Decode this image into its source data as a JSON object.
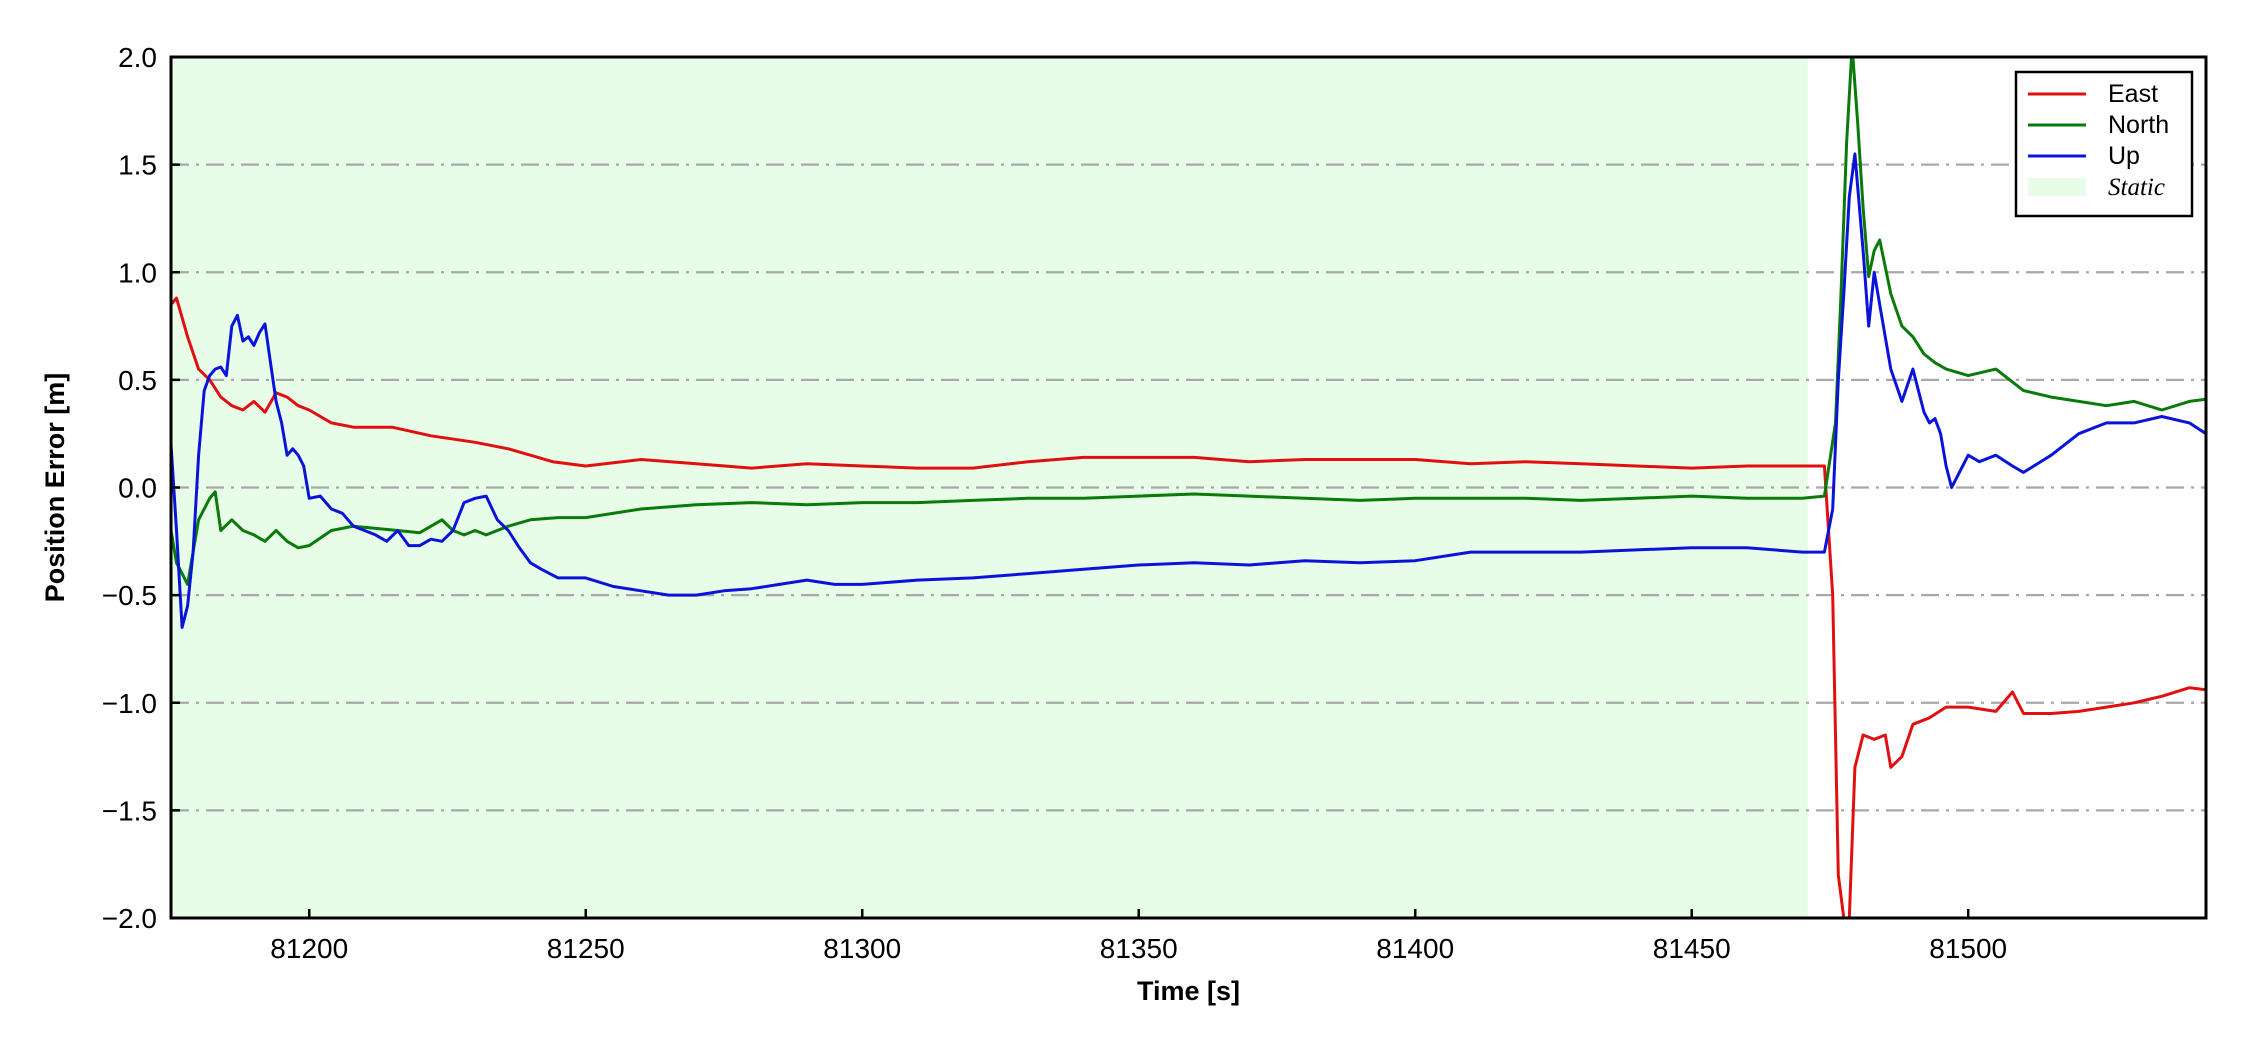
{
  "chart_data": {
    "type": "line",
    "title": "",
    "xlabel": "Time [s]",
    "ylabel": "Position Error [m]",
    "xlim": [
      81175,
      81543
    ],
    "ylim": [
      -2.0,
      2.0
    ],
    "xticks": [
      81200,
      81250,
      81300,
      81350,
      81400,
      81450,
      81500
    ],
    "yticks": [
      -2.0,
      -1.5,
      -1.0,
      -0.5,
      0.0,
      0.5,
      1.0,
      1.5,
      2.0
    ],
    "xtick_labels": [
      "81200",
      "81250",
      "81300",
      "81350",
      "81400",
      "81450",
      "81500"
    ],
    "ytick_labels": [
      "−2.0",
      "−1.5",
      "−1.0",
      "−0.5",
      "0.0",
      "0.5",
      "1.0",
      "1.5",
      "2.0"
    ],
    "grid": "horizontal dash-dot",
    "legend_position": "top-right",
    "static_region": {
      "name": "Static",
      "x": [
        81175,
        81471
      ],
      "color": "#e8fde8"
    },
    "series": [
      {
        "name": "East",
        "color": "#e01010",
        "x": [
          81175,
          81176,
          81178,
          81180,
          81182,
          81184,
          81186,
          81188,
          81190,
          81192,
          81194,
          81196,
          81198,
          81200,
          81204,
          81208,
          81215,
          81222,
          81230,
          81236,
          81240,
          81244,
          81250,
          81260,
          81270,
          81280,
          81290,
          81300,
          81310,
          81320,
          81330,
          81340,
          81350,
          81360,
          81370,
          81380,
          81390,
          81400,
          81410,
          81420,
          81430,
          81440,
          81450,
          81460,
          81470,
          81474,
          81475.5,
          81476.5,
          81477.5,
          81478.5,
          81479.5,
          81481,
          81483,
          81485,
          81486,
          81488,
          81490,
          81493,
          81496,
          81500,
          81505,
          81508,
          81510,
          81515,
          81520,
          81525,
          81530,
          81535,
          81540,
          81543
        ],
        "y": [
          0.85,
          0.88,
          0.7,
          0.55,
          0.5,
          0.42,
          0.38,
          0.36,
          0.4,
          0.35,
          0.44,
          0.42,
          0.38,
          0.36,
          0.3,
          0.28,
          0.28,
          0.24,
          0.21,
          0.18,
          0.15,
          0.12,
          0.1,
          0.13,
          0.11,
          0.09,
          0.11,
          0.1,
          0.09,
          0.09,
          0.12,
          0.14,
          0.14,
          0.14,
          0.12,
          0.13,
          0.13,
          0.13,
          0.11,
          0.12,
          0.11,
          0.1,
          0.09,
          0.1,
          0.1,
          0.1,
          -0.5,
          -1.8,
          -2.0,
          -2.0,
          -1.3,
          -1.15,
          -1.17,
          -1.15,
          -1.3,
          -1.25,
          -1.1,
          -1.07,
          -1.02,
          -1.02,
          -1.04,
          -0.95,
          -1.05,
          -1.05,
          -1.04,
          -1.02,
          -1.0,
          -0.97,
          -0.93,
          -0.94
        ]
      },
      {
        "name": "North",
        "color": "#0a7a0a",
        "x": [
          81175,
          81176,
          81177,
          81178,
          81180,
          81182,
          81183,
          81184,
          81186,
          81188,
          81190,
          81192,
          81194,
          81196,
          81198,
          81200,
          81204,
          81208,
          81212,
          81216,
          81220,
          81224,
          81226,
          81228,
          81230,
          81232,
          81236,
          81240,
          81245,
          81250,
          81260,
          81270,
          81280,
          81290,
          81300,
          81310,
          81320,
          81330,
          81340,
          81350,
          81360,
          81370,
          81380,
          81390,
          81400,
          81410,
          81420,
          81430,
          81440,
          81450,
          81460,
          81470,
          81474,
          81476,
          81477,
          81478,
          81479,
          81480,
          81481,
          81482,
          81483,
          81484,
          81486,
          81488,
          81490,
          81492,
          81494,
          81496,
          81500,
          81505,
          81510,
          81515,
          81520,
          81525,
          81530,
          81535,
          81540,
          81543
        ],
        "y": [
          -0.2,
          -0.35,
          -0.4,
          -0.45,
          -0.15,
          -0.05,
          -0.02,
          -0.2,
          -0.15,
          -0.2,
          -0.22,
          -0.25,
          -0.2,
          -0.25,
          -0.28,
          -0.27,
          -0.2,
          -0.18,
          -0.19,
          -0.2,
          -0.21,
          -0.15,
          -0.2,
          -0.22,
          -0.2,
          -0.22,
          -0.18,
          -0.15,
          -0.14,
          -0.14,
          -0.1,
          -0.08,
          -0.07,
          -0.08,
          -0.07,
          -0.07,
          -0.06,
          -0.05,
          -0.05,
          -0.04,
          -0.03,
          -0.04,
          -0.05,
          -0.06,
          -0.05,
          -0.05,
          -0.05,
          -0.06,
          -0.05,
          -0.04,
          -0.05,
          -0.05,
          -0.04,
          0.3,
          0.9,
          1.6,
          2.05,
          1.7,
          1.3,
          0.98,
          1.1,
          1.15,
          0.9,
          0.75,
          0.7,
          0.62,
          0.58,
          0.55,
          0.52,
          0.55,
          0.45,
          0.42,
          0.4,
          0.38,
          0.4,
          0.36,
          0.4,
          0.41
        ]
      },
      {
        "name": "Up",
        "color": "#0a14d8",
        "x": [
          81175,
          81176,
          81177,
          81178,
          81179,
          81180,
          81181,
          81182,
          81183,
          81184,
          81185,
          81186,
          81187,
          81188,
          81189,
          81190,
          81191,
          81192,
          81193,
          81194,
          81195,
          81196,
          81197,
          81198,
          81199,
          81200,
          81202,
          81204,
          81206,
          81208,
          81210,
          81212,
          81214,
          81216,
          81218,
          81220,
          81222,
          81224,
          81226,
          81228,
          81230,
          81232,
          81234,
          81236,
          81238,
          81240,
          81242,
          81245,
          81250,
          81255,
          81260,
          81265,
          81270,
          81275,
          81280,
          81285,
          81290,
          81295,
          81300,
          81310,
          81320,
          81330,
          81340,
          81350,
          81360,
          81370,
          81380,
          81390,
          81400,
          81410,
          81420,
          81430,
          81440,
          81450,
          81460,
          81470,
          81474,
          81475.5,
          81476.5,
          81477.5,
          81478.5,
          81479.5,
          81481,
          81482,
          81483,
          81484,
          81486,
          81488,
          81490,
          81492,
          81493,
          81494,
          81495,
          81496,
          81497,
          81498,
          81500,
          81502,
          81505,
          81508,
          81510,
          81515,
          81520,
          81525,
          81530,
          81535,
          81540,
          81543
        ],
        "y": [
          0.2,
          -0.2,
          -0.65,
          -0.55,
          -0.3,
          0.15,
          0.45,
          0.52,
          0.55,
          0.56,
          0.52,
          0.75,
          0.8,
          0.68,
          0.7,
          0.66,
          0.72,
          0.76,
          0.58,
          0.4,
          0.3,
          0.15,
          0.18,
          0.15,
          0.1,
          -0.05,
          -0.04,
          -0.1,
          -0.12,
          -0.18,
          -0.2,
          -0.22,
          -0.25,
          -0.2,
          -0.27,
          -0.27,
          -0.24,
          -0.25,
          -0.2,
          -0.07,
          -0.05,
          -0.04,
          -0.15,
          -0.2,
          -0.28,
          -0.35,
          -0.38,
          -0.42,
          -0.42,
          -0.46,
          -0.48,
          -0.5,
          -0.5,
          -0.48,
          -0.47,
          -0.45,
          -0.43,
          -0.45,
          -0.45,
          -0.43,
          -0.42,
          -0.4,
          -0.38,
          -0.36,
          -0.35,
          -0.36,
          -0.34,
          -0.35,
          -0.34,
          -0.3,
          -0.3,
          -0.3,
          -0.29,
          -0.28,
          -0.28,
          -0.3,
          -0.3,
          -0.1,
          0.5,
          0.9,
          1.35,
          1.55,
          1.1,
          0.75,
          1.0,
          0.85,
          0.55,
          0.4,
          0.55,
          0.35,
          0.3,
          0.32,
          0.25,
          0.1,
          0.0,
          0.05,
          0.15,
          0.12,
          0.15,
          0.1,
          0.07,
          0.15,
          0.25,
          0.3,
          0.3,
          0.33,
          0.3,
          0.25
        ]
      }
    ]
  }
}
